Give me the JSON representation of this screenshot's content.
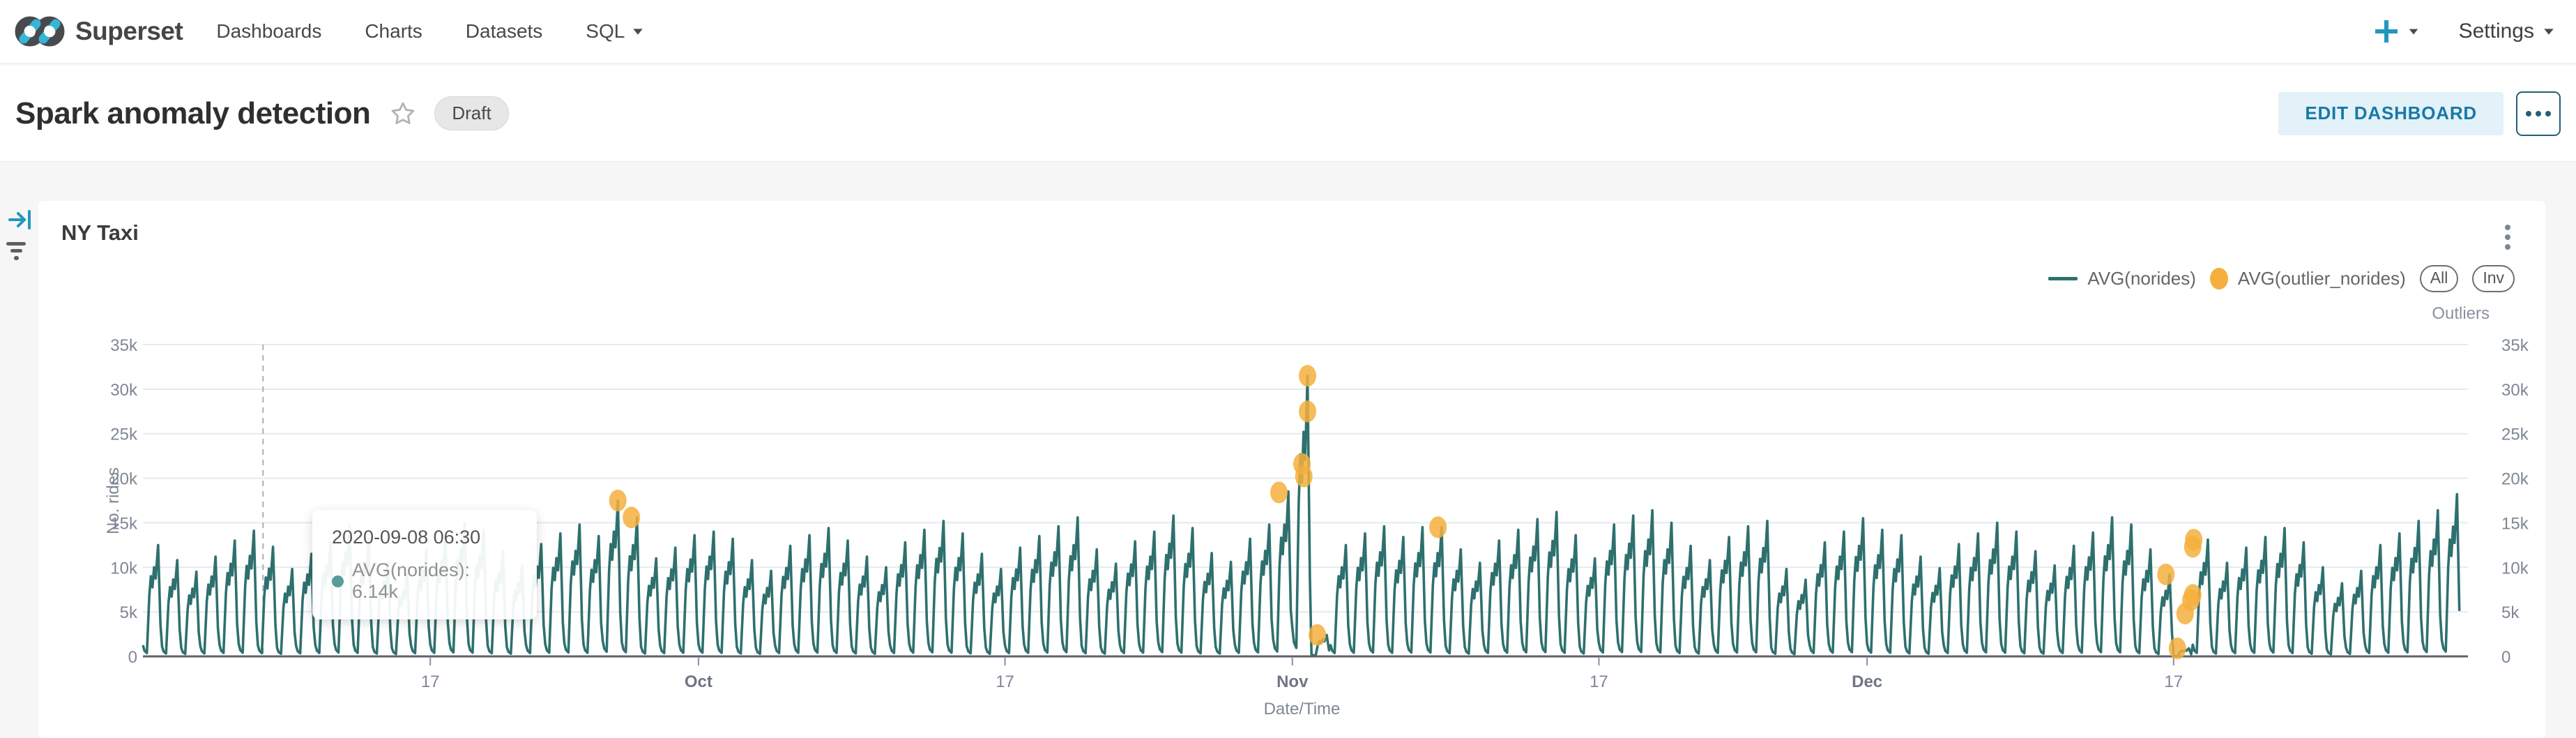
{
  "colors": {
    "accent": "#20A7C9",
    "line": "#2E706E",
    "outlier": "#F5AF3D",
    "tooltip_dot": "#579C98",
    "grid": "#E6E9F0",
    "axis_line": "#5C626B",
    "axis_text": "#7E8795",
    "crosshair": "#ABAEB7"
  },
  "navbar": {
    "brand": "Superset",
    "items": [
      {
        "label": "Dashboards"
      },
      {
        "label": "Charts"
      },
      {
        "label": "Datasets"
      },
      {
        "label": "SQL"
      }
    ],
    "settings_label": "Settings"
  },
  "title_bar": {
    "title": "Spark anomaly detection",
    "status_badge": "Draft",
    "edit_button": "EDIT DASHBOARD"
  },
  "chart_card": {
    "title": "NY Taxi"
  },
  "legend": {
    "series": [
      {
        "label": "AVG(norides)",
        "marker": "line"
      },
      {
        "label": "AVG(outlier_norides)",
        "marker": "circle"
      }
    ],
    "buttons": [
      "All",
      "Inv"
    ],
    "right_axis_name": "Outliers"
  },
  "tooltip": {
    "title": "2020-09-08 06:30",
    "row": "AVG(norides): 6.14k"
  },
  "chart_data": {
    "type": "line",
    "title": "NY Taxi",
    "xlabel": "Date/Time",
    "ylabel": "No. rides",
    "ylabel_right": "Outliers",
    "x_start": "2020-09-02",
    "x_end": "2020-12-31",
    "ylim": [
      0,
      35000
    ],
    "grid": true,
    "legend_position": "top-right",
    "y_ticks": [
      "0",
      "5k",
      "10k",
      "15k",
      "20k",
      "25k",
      "30k",
      "35k"
    ],
    "x_ticks": [
      {
        "label": "17",
        "day": 15,
        "bold": false
      },
      {
        "label": "Oct",
        "day": 29,
        "bold": true
      },
      {
        "label": "17",
        "day": 45,
        "bold": false
      },
      {
        "label": "Nov",
        "day": 60,
        "bold": true
      },
      {
        "label": "17",
        "day": 76,
        "bold": false
      },
      {
        "label": "Dec",
        "day": 90,
        "bold": true
      },
      {
        "label": "17",
        "day": 106,
        "bold": false
      }
    ],
    "crosshair_day": 6.27,
    "series": [
      {
        "name": "AVG(norides)",
        "note": "half-hourly ride counts oscillating daily between ~1k and the day peak; peaks estimated per day (thousands)",
        "daily_peaks_k": [
          12.5,
          10.8,
          9.5,
          11.2,
          13.0,
          14.1,
          12.3,
          9.8,
          11.5,
          12.8,
          14.6,
          13.2,
          10.5,
          9.2,
          12.0,
          13.4,
          15.0,
          14.2,
          11.8,
          10.2,
          12.6,
          13.8,
          14.8,
          13.5,
          17.5,
          15.6,
          11.0,
          12.2,
          13.6,
          14.0,
          13.2,
          10.8,
          9.6,
          12.4,
          13.6,
          14.4,
          13.0,
          11.2,
          10.0,
          12.8,
          14.2,
          15.2,
          13.8,
          11.5,
          9.8,
          12.2,
          13.5,
          14.6,
          15.6,
          12.0,
          10.4,
          12.9,
          14.0,
          15.8,
          14.4,
          11.6,
          10.6,
          13.2,
          14.8,
          18.5,
          31.5,
          2.4,
          12.5,
          13.8,
          14.6,
          13.4,
          14.5,
          14.5,
          12.0,
          10.5,
          13.0,
          14.2,
          15.4,
          16.2,
          13.6,
          11.0,
          14.8,
          15.8,
          16.4,
          15.0,
          12.4,
          10.8,
          13.4,
          14.6,
          15.2,
          9.8,
          8.6,
          12.8,
          14.0,
          15.5,
          14.2,
          13.6,
          11.2,
          9.9,
          12.6,
          13.8,
          15.0,
          14.0,
          11.8,
          10.2,
          12.4,
          13.9,
          15.6,
          14.8,
          12.0,
          9.2,
          0.9,
          13.1,
          10.5,
          12.2,
          13.4,
          14.4,
          12.8,
          10.0,
          8.2,
          9.6,
          12.5,
          13.8,
          15.2,
          16.4,
          18.2
        ]
      }
    ],
    "diurnal_profile": [
      [
        0,
        0.1
      ],
      [
        2,
        0.05
      ],
      [
        5,
        0.03
      ],
      [
        8,
        0.55
      ],
      [
        10,
        0.72
      ],
      [
        12,
        0.62
      ],
      [
        14,
        0.8
      ],
      [
        16,
        0.7
      ],
      [
        19,
        1.0
      ],
      [
        22,
        0.28
      ]
    ],
    "outliers": {
      "name": "AVG(outlier_norides)",
      "points": [
        [
          24.79,
          17500
        ],
        [
          25.5,
          15600
        ],
        [
          59.3,
          18400
        ],
        [
          60.5,
          21600
        ],
        [
          60.6,
          20200
        ],
        [
          60.79,
          31500
        ],
        [
          60.79,
          27500
        ],
        [
          61.3,
          2400
        ],
        [
          67.6,
          14500
        ],
        [
          105.6,
          9200
        ],
        [
          106.2,
          900
        ],
        [
          106.6,
          4800
        ],
        [
          106.9,
          6300
        ],
        [
          107.0,
          6900
        ],
        [
          107.0,
          12300
        ],
        [
          107.05,
          13100
        ]
      ]
    }
  }
}
